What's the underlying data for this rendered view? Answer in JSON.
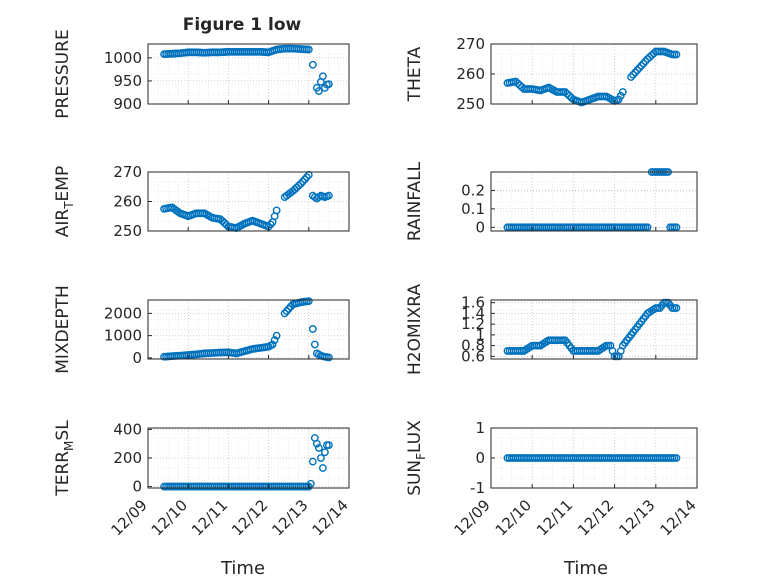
{
  "figure_title": "Figure 1 low",
  "xlabel": "Time",
  "colors": {
    "marker": "#0072BD",
    "axis": "#262626",
    "grid": "#b0b0b0",
    "background": "#ffffff"
  },
  "x_tick_labels": [
    "12/09",
    "12/10",
    "12/11",
    "12/12",
    "12/13",
    "12/14"
  ],
  "chart_data": [
    {
      "type": "scatter",
      "ylabel": "PRESSURE",
      "xlim": [
        9.0,
        14.0
      ],
      "ylim": [
        900,
        1030
      ],
      "yticks": [
        900,
        950,
        1000
      ],
      "ytick_labels": [
        "900",
        "950",
        "1000"
      ],
      "x_axis_unit": "day of December",
      "x": [
        9.4,
        9.6,
        9.8,
        10.0,
        10.2,
        10.4,
        10.6,
        10.8,
        11.0,
        11.2,
        11.4,
        11.6,
        11.8,
        12.0,
        12.2,
        12.4,
        12.6,
        12.8,
        13.0,
        13.1,
        13.2,
        13.25,
        13.3,
        13.35,
        13.4,
        13.45,
        13.5
      ],
      "y": [
        1008,
        1009,
        1010,
        1012,
        1012,
        1011,
        1012,
        1012,
        1013,
        1013,
        1013,
        1013,
        1013,
        1012,
        1018,
        1020,
        1020,
        1019,
        1018,
        985,
        935,
        928,
        948,
        960,
        935,
        942,
        943
      ]
    },
    {
      "type": "scatter",
      "ylabel": "THETA",
      "xlim": [
        9.0,
        14.0
      ],
      "ylim": [
        250,
        270
      ],
      "yticks": [
        250,
        260,
        270
      ],
      "ytick_labels": [
        "250",
        "260",
        "270"
      ],
      "x_axis_unit": "day of December",
      "x": [
        9.4,
        9.6,
        9.8,
        10.0,
        10.2,
        10.4,
        10.6,
        10.8,
        11.0,
        11.2,
        11.4,
        11.6,
        11.8,
        12.0,
        12.1,
        12.2,
        12.4,
        12.6,
        12.8,
        13.0,
        13.2,
        13.4,
        13.5
      ],
      "y": [
        257,
        257.5,
        255,
        255,
        254.5,
        255.5,
        254,
        254,
        251.5,
        250.5,
        251.5,
        252.5,
        252.5,
        251,
        251.5,
        254,
        259,
        262,
        265,
        267.5,
        267.5,
        266.5,
        266.5
      ]
    },
    {
      "type": "scatter",
      "ylabel": "AIR_TEMP",
      "xlim": [
        9.0,
        14.0
      ],
      "ylim": [
        250,
        270
      ],
      "yticks": [
        250,
        260,
        270
      ],
      "ytick_labels": [
        "250",
        "260",
        "270"
      ],
      "x_axis_unit": "day of December",
      "x": [
        9.4,
        9.6,
        9.8,
        10.0,
        10.2,
        10.4,
        10.6,
        10.8,
        11.0,
        11.2,
        11.4,
        11.6,
        11.8,
        12.0,
        12.1,
        12.2,
        12.4,
        12.6,
        12.8,
        13.0,
        13.1,
        13.2,
        13.3,
        13.4,
        13.5
      ],
      "y": [
        257.5,
        258,
        256,
        255,
        256,
        256,
        254.5,
        254,
        251.5,
        251,
        252.5,
        253.5,
        252.5,
        251.5,
        253,
        257,
        261.5,
        263.5,
        266,
        269,
        262,
        261,
        262,
        261.5,
        262
      ]
    },
    {
      "type": "scatter",
      "ylabel": "RAINFALL",
      "xlim": [
        9.0,
        14.0
      ],
      "ylim": [
        -0.02,
        0.3
      ],
      "yticks": [
        0,
        0.1,
        0.2
      ],
      "ytick_labels": [
        "0",
        "0.1",
        "0.2"
      ],
      "x_axis_unit": "day of December",
      "x": [
        9.4,
        9.6,
        9.8,
        10.0,
        10.2,
        10.4,
        10.6,
        10.8,
        11.0,
        11.2,
        11.4,
        11.6,
        11.8,
        12.0,
        12.2,
        12.4,
        12.6,
        12.8,
        12.9,
        13.0,
        13.1,
        13.2,
        13.25,
        13.3,
        13.35,
        13.4,
        13.45,
        13.5
      ],
      "y": [
        0,
        0,
        0,
        0,
        0,
        0,
        0,
        0,
        0,
        0,
        0,
        0,
        0,
        0,
        0,
        0,
        0,
        0,
        0.3,
        0.3,
        0.3,
        0.3,
        0.3,
        0.3,
        0,
        0,
        0,
        0
      ]
    },
    {
      "type": "scatter",
      "ylabel": "MIXDEPTH",
      "xlim": [
        9.0,
        14.0
      ],
      "ylim": [
        -50,
        2600
      ],
      "yticks": [
        0,
        1000,
        2000
      ],
      "ytick_labels": [
        "0",
        "1000",
        "2000"
      ],
      "x_axis_unit": "day of December",
      "x": [
        9.4,
        9.6,
        9.8,
        10.0,
        10.2,
        10.4,
        10.6,
        10.8,
        11.0,
        11.2,
        11.4,
        11.6,
        11.8,
        12.0,
        12.1,
        12.2,
        12.4,
        12.6,
        12.8,
        13.0,
        13.1,
        13.15,
        13.2,
        13.3,
        13.4,
        13.5
      ],
      "y": [
        50,
        80,
        100,
        130,
        160,
        200,
        220,
        240,
        250,
        200,
        300,
        400,
        450,
        500,
        600,
        1000,
        2000,
        2400,
        2500,
        2550,
        1300,
        600,
        200,
        100,
        50,
        20
      ]
    },
    {
      "type": "scatter",
      "ylabel": "H2OMIXRA",
      "xlim": [
        9.0,
        14.0
      ],
      "ylim": [
        0.55,
        1.65
      ],
      "yticks": [
        0.6,
        0.8,
        1.0,
        1.2,
        1.4,
        1.6
      ],
      "ytick_labels": [
        "0.6",
        "0.8",
        "1",
        "1.2",
        "1.4",
        "1.6"
      ],
      "x_axis_unit": "day of December",
      "x": [
        9.4,
        9.6,
        9.8,
        10.0,
        10.2,
        10.4,
        10.6,
        10.8,
        11.0,
        11.2,
        11.4,
        11.6,
        11.8,
        11.9,
        12.0,
        12.1,
        12.2,
        12.4,
        12.6,
        12.8,
        13.0,
        13.1,
        13.2,
        13.3,
        13.4,
        13.5
      ],
      "y": [
        0.7,
        0.7,
        0.7,
        0.8,
        0.8,
        0.9,
        0.9,
        0.9,
        0.7,
        0.7,
        0.7,
        0.7,
        0.8,
        0.8,
        0.6,
        0.6,
        0.8,
        1.0,
        1.2,
        1.4,
        1.5,
        1.5,
        1.6,
        1.6,
        1.5,
        1.5
      ]
    },
    {
      "type": "scatter",
      "ylabel": "TERR_MSL",
      "xlim": [
        9.0,
        14.0
      ],
      "ylim": [
        -10,
        410
      ],
      "yticks": [
        0,
        200,
        400
      ],
      "ytick_labels": [
        "0",
        "200",
        "400"
      ],
      "x_axis_unit": "day of December",
      "x": [
        9.4,
        9.6,
        9.8,
        10.0,
        10.2,
        10.4,
        10.6,
        10.8,
        11.0,
        11.2,
        11.4,
        11.6,
        11.8,
        12.0,
        12.2,
        12.4,
        12.6,
        12.8,
        13.0,
        13.05,
        13.1,
        13.15,
        13.2,
        13.25,
        13.3,
        13.35,
        13.4,
        13.45,
        13.5
      ],
      "y": [
        0,
        0,
        0,
        0,
        0,
        0,
        0,
        0,
        0,
        0,
        0,
        0,
        0,
        0,
        0,
        0,
        0,
        0,
        0,
        20,
        175,
        340,
        300,
        270,
        200,
        130,
        240,
        290,
        290
      ]
    },
    {
      "type": "scatter",
      "ylabel": "SUN_FLUX",
      "xlim": [
        9.0,
        14.0
      ],
      "ylim": [
        -1,
        1
      ],
      "yticks": [
        -1,
        0,
        1
      ],
      "ytick_labels": [
        "-1",
        "0",
        "1"
      ],
      "x_axis_unit": "day of December",
      "x": [
        9.4,
        9.6,
        9.8,
        10.0,
        10.2,
        10.4,
        10.6,
        10.8,
        11.0,
        11.2,
        11.4,
        11.6,
        11.8,
        12.0,
        12.2,
        12.4,
        12.6,
        12.8,
        13.0,
        13.2,
        13.4,
        13.5
      ],
      "y": [
        0,
        0,
        0,
        0,
        0,
        0,
        0,
        0,
        0,
        0,
        0,
        0,
        0,
        0,
        0,
        0,
        0,
        0,
        0,
        0,
        0,
        0
      ]
    }
  ]
}
